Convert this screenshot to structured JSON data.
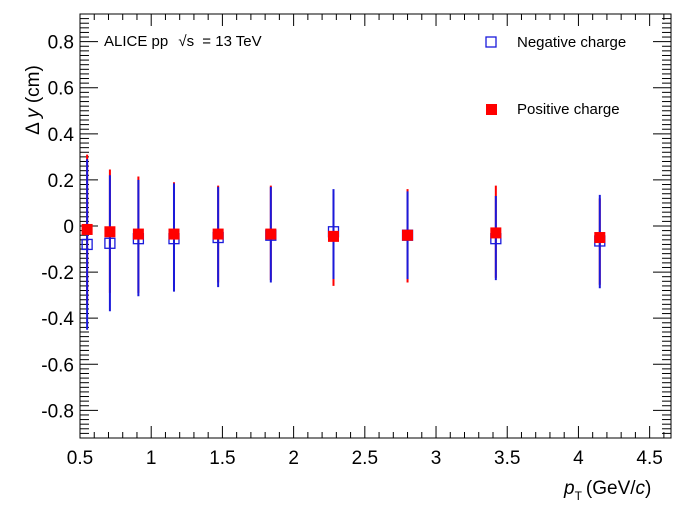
{
  "chart_data": {
    "type": "scatter",
    "annotation": {
      "prefix": "ALICE pp",
      "sqrt_s": "√s",
      "suffix": "= 13 TeV"
    },
    "xlabel": {
      "symbol": "p",
      "subscript": "T",
      "unit_open": "(GeV/",
      "unit_c": "c",
      "unit_close": ")"
    },
    "ylabel": {
      "prefix": "Δ ",
      "symbol": "y",
      "unit": " (cm)"
    },
    "xlim": [
      0.5,
      4.65
    ],
    "ylim": [
      -0.92,
      0.92
    ],
    "xticks": [
      0.5,
      1,
      1.5,
      2,
      2.5,
      3,
      3.5,
      4,
      4.5
    ],
    "xtick_labels": [
      "0.5",
      "1",
      "1.5",
      "2",
      "2.5",
      "3",
      "3.5",
      "4",
      "4.5"
    ],
    "yticks": [
      -0.8,
      -0.6,
      -0.4,
      -0.2,
      0,
      0.2,
      0.4,
      0.6,
      0.8
    ],
    "ytick_labels": [
      "-0.8",
      "-0.6",
      "-0.4",
      "-0.2",
      "0",
      "0.2",
      "0.4",
      "0.6",
      "0.8"
    ],
    "legend_position": "top-right",
    "series": [
      {
        "name": "Negative charge",
        "marker": "open-square",
        "color": "#1a1adb",
        "points": [
          {
            "x": 0.55,
            "y": -0.08,
            "ylo": -0.45,
            "yhi": 0.29
          },
          {
            "x": 0.71,
            "y": -0.075,
            "ylo": -0.37,
            "yhi": 0.22
          },
          {
            "x": 0.91,
            "y": -0.055,
            "ylo": -0.305,
            "yhi": 0.2
          },
          {
            "x": 1.16,
            "y": -0.055,
            "ylo": -0.285,
            "yhi": 0.185
          },
          {
            "x": 1.47,
            "y": -0.05,
            "ylo": -0.265,
            "yhi": 0.17
          },
          {
            "x": 1.84,
            "y": -0.04,
            "ylo": -0.245,
            "yhi": 0.17
          },
          {
            "x": 2.28,
            "y": -0.025,
            "ylo": -0.23,
            "yhi": 0.16
          },
          {
            "x": 2.8,
            "y": -0.04,
            "ylo": -0.23,
            "yhi": 0.15
          },
          {
            "x": 3.42,
            "y": -0.055,
            "ylo": -0.235,
            "yhi": 0.13
          },
          {
            "x": 4.15,
            "y": -0.065,
            "ylo": -0.27,
            "yhi": 0.135
          }
        ]
      },
      {
        "name": "Positive charge",
        "marker": "filled-square",
        "color": "#ff0000",
        "points": [
          {
            "x": 0.55,
            "y": -0.015,
            "ylo": -0.34,
            "yhi": 0.31
          },
          {
            "x": 0.71,
            "y": -0.025,
            "ylo": -0.29,
            "yhi": 0.245
          },
          {
            "x": 0.91,
            "y": -0.035,
            "ylo": -0.29,
            "yhi": 0.215
          },
          {
            "x": 1.16,
            "y": -0.035,
            "ylo": -0.265,
            "yhi": 0.19
          },
          {
            "x": 1.47,
            "y": -0.035,
            "ylo": -0.245,
            "yhi": 0.175
          },
          {
            "x": 1.84,
            "y": -0.035,
            "ylo": -0.235,
            "yhi": 0.175
          },
          {
            "x": 2.28,
            "y": -0.045,
            "ylo": -0.26,
            "yhi": 0.14
          },
          {
            "x": 2.8,
            "y": -0.04,
            "ylo": -0.245,
            "yhi": 0.16
          },
          {
            "x": 3.42,
            "y": -0.03,
            "ylo": -0.225,
            "yhi": 0.175
          },
          {
            "x": 4.15,
            "y": -0.05,
            "ylo": -0.255,
            "yhi": 0.12
          }
        ]
      }
    ]
  }
}
